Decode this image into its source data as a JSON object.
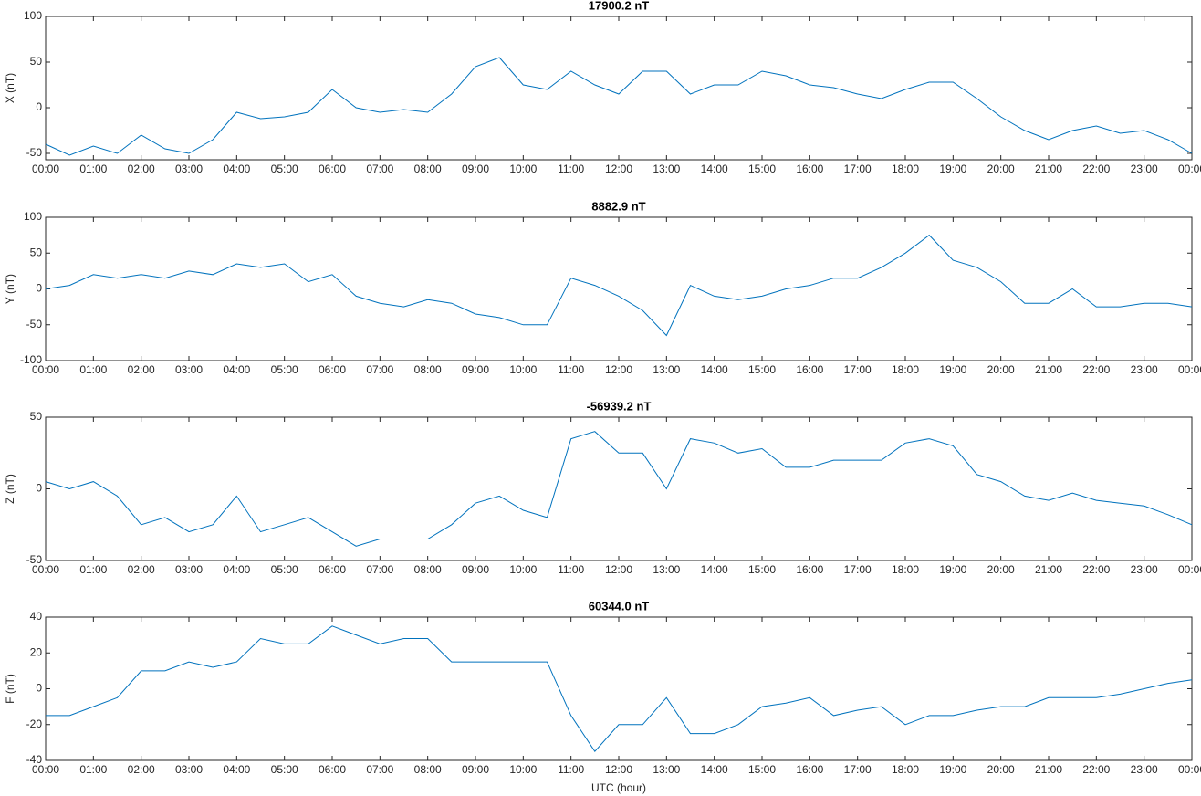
{
  "chart_data": [
    {
      "type": "line",
      "title": "17900.2 nT",
      "ylabel": "X (nT)",
      "x": [
        0,
        0.5,
        1,
        1.5,
        2,
        2.5,
        3,
        3.5,
        4,
        4.5,
        5,
        5.5,
        6,
        6.5,
        7,
        7.5,
        8,
        8.5,
        9,
        9.5,
        10,
        10.5,
        11,
        11.5,
        12,
        12.5,
        13,
        13.5,
        14,
        14.5,
        15,
        15.5,
        16,
        16.5,
        17,
        17.5,
        18,
        18.5,
        19,
        19.5,
        20,
        20.5,
        21,
        21.5,
        22,
        22.5,
        23,
        23.5,
        24
      ],
      "series": [
        {
          "name": "X",
          "color": "#0072bd",
          "values": [
            -40,
            -52,
            -42,
            -50,
            -30,
            -45,
            -50,
            -35,
            -5,
            -12,
            -10,
            -5,
            20,
            0,
            -5,
            -2,
            -5,
            15,
            45,
            55,
            25,
            20,
            40,
            25,
            15,
            40,
            40,
            15,
            25,
            25,
            40,
            35,
            25,
            22,
            15,
            10,
            20,
            28,
            28,
            10,
            -10,
            -25,
            -35,
            -25,
            -20,
            -28,
            -25,
            -35,
            -50
          ]
        }
      ],
      "xlim": [
        0,
        24
      ],
      "xticks": [
        {
          "value": 0,
          "label": "00:00"
        },
        {
          "value": 1,
          "label": "01:00"
        },
        {
          "value": 2,
          "label": "02:00"
        },
        {
          "value": 3,
          "label": "03:00"
        },
        {
          "value": 4,
          "label": "04:00"
        },
        {
          "value": 5,
          "label": "05:00"
        },
        {
          "value": 6,
          "label": "06:00"
        },
        {
          "value": 7,
          "label": "07:00"
        },
        {
          "value": 8,
          "label": "08:00"
        },
        {
          "value": 9,
          "label": "09:00"
        },
        {
          "value": 10,
          "label": "10:00"
        },
        {
          "value": 11,
          "label": "11:00"
        },
        {
          "value": 12,
          "label": "12:00"
        },
        {
          "value": 13,
          "label": "13:00"
        },
        {
          "value": 14,
          "label": "14:00"
        },
        {
          "value": 15,
          "label": "15:00"
        },
        {
          "value": 16,
          "label": "16:00"
        },
        {
          "value": 17,
          "label": "17:00"
        },
        {
          "value": 18,
          "label": "18:00"
        },
        {
          "value": 19,
          "label": "19:00"
        },
        {
          "value": 20,
          "label": "20:00"
        },
        {
          "value": 21,
          "label": "21:00"
        },
        {
          "value": 22,
          "label": "22:00"
        },
        {
          "value": 23,
          "label": "23:00"
        },
        {
          "value": 24,
          "label": "00:00"
        }
      ],
      "ylim": [
        -57,
        100
      ],
      "yticks": [
        -50,
        0,
        50,
        100
      ]
    },
    {
      "type": "line",
      "title": "8882.9 nT",
      "ylabel": "Y (nT)",
      "x": [
        0,
        0.5,
        1,
        1.5,
        2,
        2.5,
        3,
        3.5,
        4,
        4.5,
        5,
        5.5,
        6,
        6.5,
        7,
        7.5,
        8,
        8.5,
        9,
        9.5,
        10,
        10.5,
        11,
        11.5,
        12,
        12.5,
        13,
        13.5,
        14,
        14.5,
        15,
        15.5,
        16,
        16.5,
        17,
        17.5,
        18,
        18.5,
        19,
        19.5,
        20,
        20.5,
        21,
        21.5,
        22,
        22.5,
        23,
        23.5,
        24
      ],
      "series": [
        {
          "name": "Y",
          "color": "#0072bd",
          "values": [
            0,
            5,
            20,
            15,
            20,
            15,
            25,
            20,
            35,
            30,
            35,
            10,
            20,
            -10,
            -20,
            -25,
            -15,
            -20,
            -35,
            -40,
            -50,
            -50,
            15,
            5,
            -10,
            -30,
            -65,
            5,
            -10,
            -15,
            -10,
            0,
            5,
            15,
            15,
            30,
            50,
            75,
            40,
            30,
            10,
            -20,
            -20,
            0,
            -25,
            -25,
            -20,
            -20,
            -25
          ]
        }
      ],
      "xlim": [
        0,
        24
      ],
      "xticks": [
        {
          "value": 0,
          "label": "00:00"
        },
        {
          "value": 1,
          "label": "01:00"
        },
        {
          "value": 2,
          "label": "02:00"
        },
        {
          "value": 3,
          "label": "03:00"
        },
        {
          "value": 4,
          "label": "04:00"
        },
        {
          "value": 5,
          "label": "05:00"
        },
        {
          "value": 6,
          "label": "06:00"
        },
        {
          "value": 7,
          "label": "07:00"
        },
        {
          "value": 8,
          "label": "08:00"
        },
        {
          "value": 9,
          "label": "09:00"
        },
        {
          "value": 10,
          "label": "10:00"
        },
        {
          "value": 11,
          "label": "11:00"
        },
        {
          "value": 12,
          "label": "12:00"
        },
        {
          "value": 13,
          "label": "13:00"
        },
        {
          "value": 14,
          "label": "14:00"
        },
        {
          "value": 15,
          "label": "15:00"
        },
        {
          "value": 16,
          "label": "16:00"
        },
        {
          "value": 17,
          "label": "17:00"
        },
        {
          "value": 18,
          "label": "18:00"
        },
        {
          "value": 19,
          "label": "19:00"
        },
        {
          "value": 20,
          "label": "20:00"
        },
        {
          "value": 21,
          "label": "21:00"
        },
        {
          "value": 22,
          "label": "22:00"
        },
        {
          "value": 23,
          "label": "23:00"
        },
        {
          "value": 24,
          "label": "00:00"
        }
      ],
      "ylim": [
        -100,
        100
      ],
      "yticks": [
        -100,
        -50,
        0,
        50,
        100
      ]
    },
    {
      "type": "line",
      "title": "-56939.2 nT",
      "ylabel": "Z (nT)",
      "x": [
        0,
        0.5,
        1,
        1.5,
        2,
        2.5,
        3,
        3.5,
        4,
        4.5,
        5,
        5.5,
        6,
        6.5,
        7,
        7.5,
        8,
        8.5,
        9,
        9.5,
        10,
        10.5,
        11,
        11.5,
        12,
        12.5,
        13,
        13.5,
        14,
        14.5,
        15,
        15.5,
        16,
        16.5,
        17,
        17.5,
        18,
        18.5,
        19,
        19.5,
        20,
        20.5,
        21,
        21.5,
        22,
        22.5,
        23,
        23.5,
        24
      ],
      "series": [
        {
          "name": "Z",
          "color": "#0072bd",
          "values": [
            5,
            0,
            5,
            -5,
            -25,
            -20,
            -30,
            -25,
            -5,
            -30,
            -25,
            -20,
            -30,
            -40,
            -35,
            -35,
            -35,
            -25,
            -10,
            -5,
            -15,
            -20,
            35,
            40,
            25,
            25,
            0,
            35,
            32,
            25,
            28,
            15,
            15,
            20,
            20,
            20,
            32,
            35,
            30,
            10,
            5,
            -5,
            -8,
            -3,
            -8,
            -10,
            -12,
            -18,
            -25
          ]
        }
      ],
      "xlim": [
        0,
        24
      ],
      "xticks": [
        {
          "value": 0,
          "label": "00:00"
        },
        {
          "value": 1,
          "label": "01:00"
        },
        {
          "value": 2,
          "label": "02:00"
        },
        {
          "value": 3,
          "label": "03:00"
        },
        {
          "value": 4,
          "label": "04:00"
        },
        {
          "value": 5,
          "label": "05:00"
        },
        {
          "value": 6,
          "label": "06:00"
        },
        {
          "value": 7,
          "label": "07:00"
        },
        {
          "value": 8,
          "label": "08:00"
        },
        {
          "value": 9,
          "label": "09:00"
        },
        {
          "value": 10,
          "label": "10:00"
        },
        {
          "value": 11,
          "label": "11:00"
        },
        {
          "value": 12,
          "label": "12:00"
        },
        {
          "value": 13,
          "label": "13:00"
        },
        {
          "value": 14,
          "label": "14:00"
        },
        {
          "value": 15,
          "label": "15:00"
        },
        {
          "value": 16,
          "label": "16:00"
        },
        {
          "value": 17,
          "label": "17:00"
        },
        {
          "value": 18,
          "label": "18:00"
        },
        {
          "value": 19,
          "label": "19:00"
        },
        {
          "value": 20,
          "label": "20:00"
        },
        {
          "value": 21,
          "label": "21:00"
        },
        {
          "value": 22,
          "label": "22:00"
        },
        {
          "value": 23,
          "label": "23:00"
        },
        {
          "value": 24,
          "label": "00:00"
        }
      ],
      "ylim": [
        -50,
        50
      ],
      "yticks": [
        -50,
        0,
        50
      ]
    },
    {
      "type": "line",
      "title": "60344.0 nT",
      "ylabel": "F (nT)",
      "xlabel": "UTC (hour)",
      "x": [
        0,
        0.5,
        1,
        1.5,
        2,
        2.5,
        3,
        3.5,
        4,
        4.5,
        5,
        5.5,
        6,
        6.5,
        7,
        7.5,
        8,
        8.5,
        9,
        9.5,
        10,
        10.5,
        11,
        11.5,
        12,
        12.5,
        13,
        13.5,
        14,
        14.5,
        15,
        15.5,
        16,
        16.5,
        17,
        17.5,
        18,
        18.5,
        19,
        19.5,
        20,
        20.5,
        21,
        21.5,
        22,
        22.5,
        23,
        23.5,
        24
      ],
      "series": [
        {
          "name": "F",
          "color": "#0072bd",
          "values": [
            -15,
            -15,
            -10,
            -5,
            10,
            10,
            15,
            12,
            15,
            28,
            25,
            25,
            35,
            30,
            25,
            28,
            28,
            15,
            15,
            15,
            15,
            15,
            -15,
            -35,
            -20,
            -20,
            -5,
            -25,
            -25,
            -20,
            -10,
            -8,
            -5,
            -15,
            -12,
            -10,
            -20,
            -15,
            -15,
            -12,
            -10,
            -10,
            -5,
            -5,
            -5,
            -3,
            0,
            3,
            5
          ]
        }
      ],
      "xlim": [
        0,
        24
      ],
      "xticks": [
        {
          "value": 0,
          "label": "00:00"
        },
        {
          "value": 1,
          "label": "01:00"
        },
        {
          "value": 2,
          "label": "02:00"
        },
        {
          "value": 3,
          "label": "03:00"
        },
        {
          "value": 4,
          "label": "04:00"
        },
        {
          "value": 5,
          "label": "05:00"
        },
        {
          "value": 6,
          "label": "06:00"
        },
        {
          "value": 7,
          "label": "07:00"
        },
        {
          "value": 8,
          "label": "08:00"
        },
        {
          "value": 9,
          "label": "09:00"
        },
        {
          "value": 10,
          "label": "10:00"
        },
        {
          "value": 11,
          "label": "11:00"
        },
        {
          "value": 12,
          "label": "12:00"
        },
        {
          "value": 13,
          "label": "13:00"
        },
        {
          "value": 14,
          "label": "14:00"
        },
        {
          "value": 15,
          "label": "15:00"
        },
        {
          "value": 16,
          "label": "16:00"
        },
        {
          "value": 17,
          "label": "17:00"
        },
        {
          "value": 18,
          "label": "18:00"
        },
        {
          "value": 19,
          "label": "19:00"
        },
        {
          "value": 20,
          "label": "20:00"
        },
        {
          "value": 21,
          "label": "21:00"
        },
        {
          "value": 22,
          "label": "22:00"
        },
        {
          "value": 23,
          "label": "23:00"
        },
        {
          "value": 24,
          "label": "00:00"
        }
      ],
      "ylim": [
        -40,
        40
      ],
      "yticks": [
        -40,
        -20,
        0,
        20,
        40
      ]
    }
  ]
}
